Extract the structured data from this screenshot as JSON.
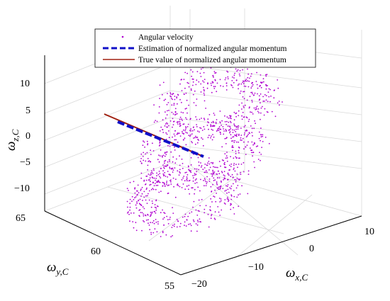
{
  "chart_data": {
    "type": "scatter",
    "dimensions": 3,
    "legend": {
      "placement": "top-center",
      "entries": [
        {
          "label": "Angular velocity",
          "style": "dots",
          "color": "#b000d0"
        },
        {
          "label": "Estimation of normalized angular momentum",
          "style": "dashed-line",
          "color": "#1010c8"
        },
        {
          "label": "True value of normalized angular momentum",
          "style": "solid-line",
          "color": "#a02010"
        }
      ]
    },
    "axes": {
      "x": {
        "label_main": "ω",
        "label_sub": "x,C",
        "ticks": [
          "−20",
          "−10",
          "0",
          "10"
        ],
        "range": [
          -20,
          10
        ]
      },
      "y": {
        "label_main": "ω",
        "label_sub": "y,C",
        "ticks": [
          "55",
          "60",
          "65"
        ],
        "range": [
          55,
          65
        ]
      },
      "z": {
        "label_main": "ω",
        "label_sub": "z,C",
        "ticks": [
          "10",
          "5",
          "0",
          "−5",
          "−10"
        ],
        "range": [
          -12,
          14
        ]
      }
    },
    "grid": true,
    "series": [
      {
        "name": "Angular velocity",
        "kind": "points",
        "pattern": "three stacked elliptical rings of scattered points centered near x=-5, z from -10 to 12"
      },
      {
        "name": "Estimation of normalized angular momentum",
        "kind": "line",
        "points": [
          [
            -6,
            62.5,
            5
          ],
          [
            -1,
            57.5,
            -5
          ]
        ]
      },
      {
        "name": "True value of normalized angular momentum",
        "kind": "line",
        "points": [
          [
            -7.5,
            63.5,
            7
          ],
          [
            -1,
            57.5,
            -5
          ]
        ]
      }
    ],
    "colors": {
      "points": "#b000d0",
      "estimate": "#1010c8",
      "true": "#a02010"
    }
  }
}
